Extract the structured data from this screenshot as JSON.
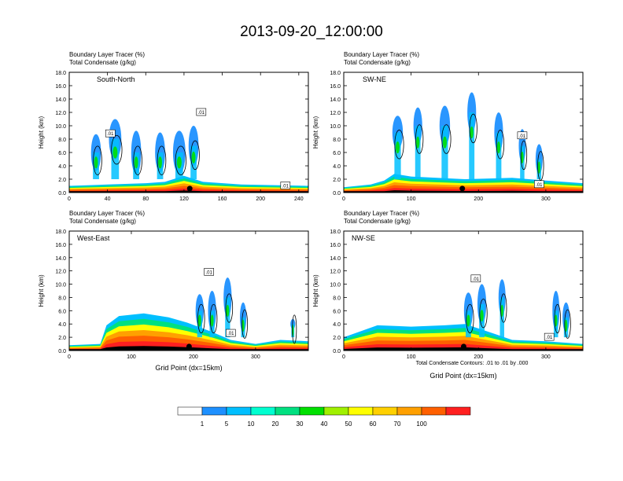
{
  "title": "2013-09-20_12:00:00",
  "panel_header_line1": "Boundary Layer Tracer    (%)",
  "panel_header_line2": "Total Condensate   (g/kg)",
  "contour_note": "Total Condensate Contours: .01 to .01 by .000",
  "colorbar": {
    "colors": [
      "#ffffff",
      "#1e90ff",
      "#00bfff",
      "#00ffd0",
      "#00e080",
      "#00e000",
      "#a0f000",
      "#ffff00",
      "#ffd000",
      "#ffa000",
      "#ff6000",
      "#ff2020"
    ],
    "labels": [
      "1",
      "5",
      "10",
      "20",
      "30",
      "40",
      "50",
      "60",
      "70",
      "100"
    ]
  },
  "chart_data": [
    {
      "type": "heatmap",
      "panel": "South-North",
      "header_line1": "Boundary Layer Tracer    (%)",
      "header_line2": "Total Condensate   (g/kg)",
      "ylabel": "Height (km)",
      "xlabel": "",
      "xlim": [
        0,
        250
      ],
      "ylim": [
        0,
        18
      ],
      "xticks": [
        "0",
        "40",
        "80",
        "120",
        "160",
        "200",
        "240"
      ],
      "xtick_values": [
        0,
        40,
        80,
        120,
        160,
        200,
        240
      ],
      "yticks": [
        "0.0",
        "2.0",
        "4.0",
        "6.0",
        "8.0",
        "10.0",
        "12.0",
        "14.0",
        "16.0",
        "18.0"
      ],
      "marker_x": 126,
      "contour_labels": [
        {
          "text": ".01",
          "x": 138,
          "y": 12.0
        },
        {
          "text": ".01",
          "x": 43,
          "y": 8.8
        },
        {
          "text": ".01",
          "x": 226,
          "y": 1.0
        }
      ]
    },
    {
      "type": "heatmap",
      "panel": "SW-NE",
      "header_line1": "Boundary Layer Tracer    (%)",
      "header_line2": "Total Condensate   (g/kg)",
      "ylabel": "Height (km)",
      "xlabel": "",
      "xlim": [
        0,
        355
      ],
      "ylim": [
        0,
        18
      ],
      "xticks": [
        "0",
        "100",
        "200",
        "300"
      ],
      "xtick_values": [
        0,
        100,
        200,
        300
      ],
      "yticks": [
        "0.0",
        "2.0",
        "4.0",
        "6.0",
        "8.0",
        "10.0",
        "12.0",
        "14.0",
        "16.0",
        "18.0"
      ],
      "marker_x": 176,
      "contour_labels": [
        {
          "text": ".01",
          "x": 265,
          "y": 8.5
        },
        {
          "text": ".01",
          "x": 290,
          "y": 1.2
        }
      ]
    },
    {
      "type": "heatmap",
      "panel": "West-East",
      "header_line1": "Boundary Layer Tracer    (%)",
      "header_line2": "Total Condensate   (g/kg)",
      "ylabel": "Height (km)",
      "xlabel": "Grid Point (dx=15km)",
      "xlim": [
        0,
        385
      ],
      "ylim": [
        0,
        18
      ],
      "xticks": [
        "0",
        "100",
        "200",
        "300"
      ],
      "xtick_values": [
        0,
        100,
        200,
        300
      ],
      "yticks": [
        "0.0",
        "2.0",
        "4.0",
        "6.0",
        "8.0",
        "10.0",
        "12.0",
        "14.0",
        "16.0",
        "18.0"
      ],
      "marker_x": 193,
      "contour_labels": [
        {
          "text": ".01",
          "x": 225,
          "y": 11.8
        },
        {
          "text": ".01",
          "x": 260,
          "y": 2.6
        }
      ]
    },
    {
      "type": "heatmap",
      "panel": "NW-SE",
      "header_line1": "Boundary Layer Tracer    (%)",
      "header_line2": "Total Condensate   (g/kg)",
      "ylabel": "Height (km)",
      "xlabel": "Grid Point (dx=15km)",
      "xlim": [
        0,
        355
      ],
      "ylim": [
        0,
        18
      ],
      "xticks": [
        "0",
        "100",
        "200",
        "300"
      ],
      "xtick_values": [
        0,
        100,
        200,
        300
      ],
      "yticks": [
        "0.0",
        "2.0",
        "4.0",
        "6.0",
        "8.0",
        "10.0",
        "12.0",
        "14.0",
        "16.0",
        "18.0"
      ],
      "marker_x": 178,
      "contour_labels": [
        {
          "text": ".01",
          "x": 196,
          "y": 10.8
        },
        {
          "text": ".01",
          "x": 305,
          "y": 2.0
        }
      ]
    }
  ]
}
